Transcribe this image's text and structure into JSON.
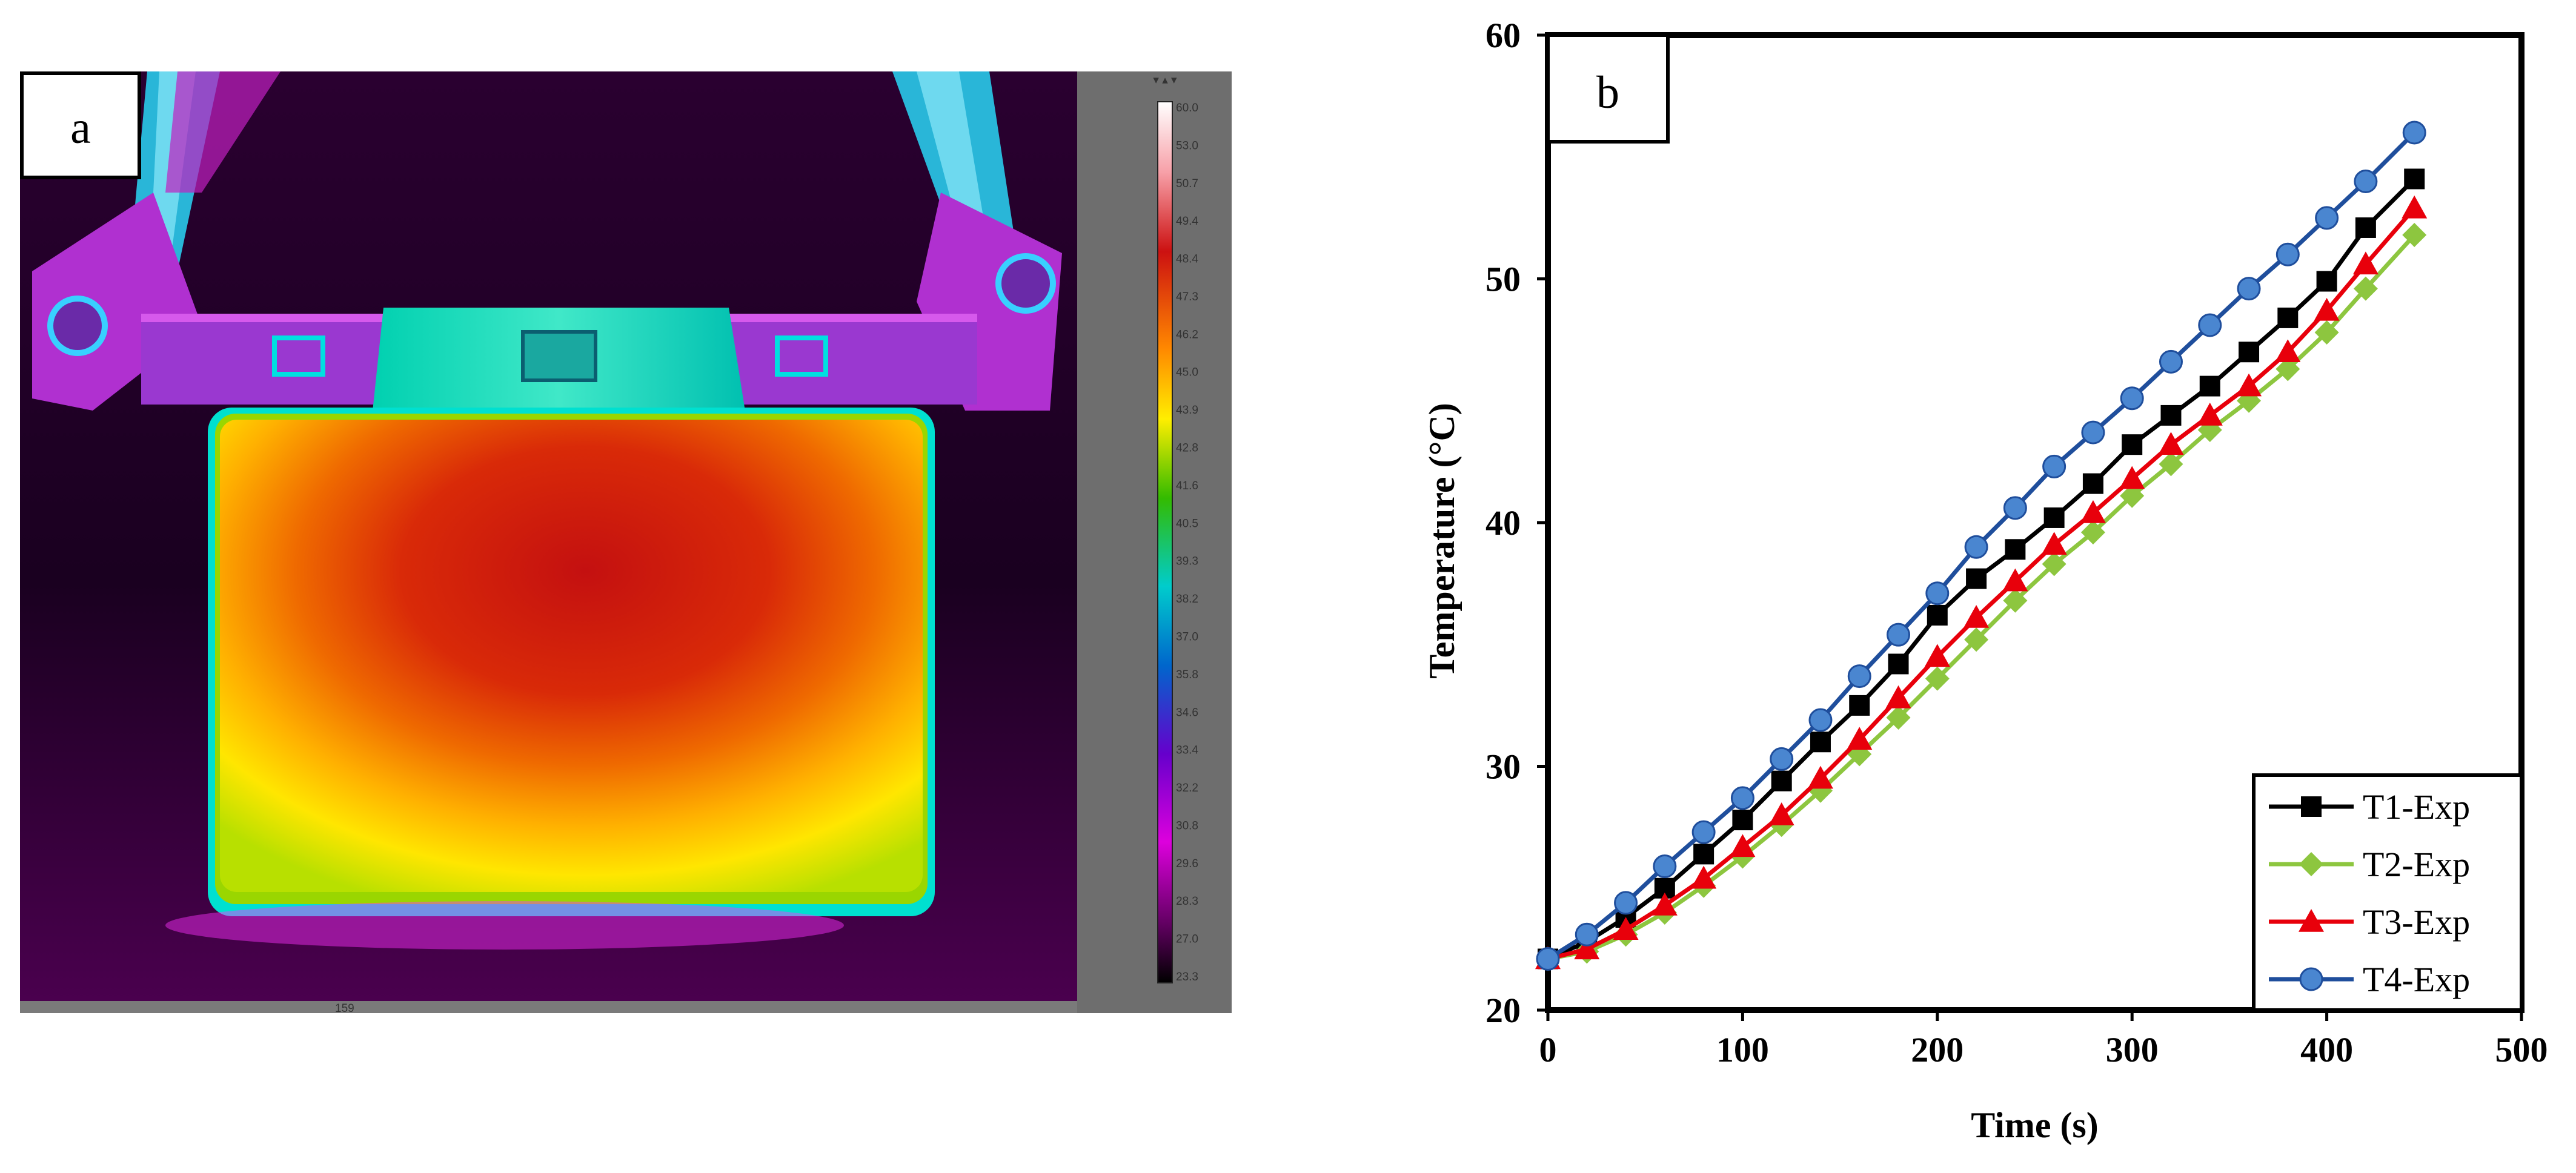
{
  "panel_a": {
    "label": "a",
    "thermal_scale": {
      "ticks": [
        "60.0",
        "53.0",
        "50.7",
        "49.4",
        "48.4",
        "47.3",
        "46.2",
        "45.0",
        "43.9",
        "42.8",
        "41.6",
        "40.5",
        "39.3",
        "38.2",
        "37.0",
        "35.8",
        "34.6",
        "33.4",
        "32.2",
        "30.8",
        "29.6",
        "28.3",
        "27.0",
        "23.3"
      ],
      "colors": [
        "#ffffff",
        "#ffd0d8",
        "#f7a0a8",
        "#e05050",
        "#cc1111",
        "#dd3300",
        "#ee6600",
        "#ffaa00",
        "#ffee00",
        "#ccee00",
        "#66cc00",
        "#00aa22",
        "#00bb88",
        "#00cccc",
        "#00aadd",
        "#0077cc",
        "#3333cc",
        "#4444cc",
        "#7700cc",
        "#aa00cc",
        "#dd00dd",
        "#bb00aa",
        "#660066",
        "#000000"
      ]
    },
    "bottom_readout": "159"
  },
  "chart_data": {
    "type": "line",
    "panel_label": "b",
    "xlabel": "Time (s)",
    "ylabel": "Temperature (°C)",
    "xlim": [
      0,
      500
    ],
    "ylim": [
      20,
      60
    ],
    "xticks": [
      0,
      100,
      200,
      300,
      400,
      500
    ],
    "yticks": [
      20,
      30,
      40,
      50,
      60
    ],
    "grid": false,
    "legend_position": "bottom-right",
    "x": [
      0,
      20,
      40,
      60,
      80,
      100,
      120,
      140,
      160,
      180,
      200,
      220,
      240,
      260,
      280,
      300,
      320,
      340,
      360,
      380,
      400,
      420,
      445
    ],
    "series": [
      {
        "name": "T1-Exp",
        "color": "#000000",
        "marker": "square",
        "values": [
          22.1,
          22.8,
          23.8,
          25.0,
          26.4,
          27.8,
          29.4,
          31.0,
          32.5,
          34.2,
          36.2,
          37.7,
          38.9,
          40.2,
          41.6,
          43.2,
          44.4,
          45.6,
          47.0,
          48.4,
          49.9,
          52.1,
          54.1
        ]
      },
      {
        "name": "T2-Exp",
        "color": "#8dc63f",
        "marker": "diamond",
        "values": [
          22.1,
          22.4,
          23.1,
          24.0,
          25.1,
          26.3,
          27.6,
          29.0,
          30.5,
          32.0,
          33.6,
          35.2,
          36.8,
          38.3,
          39.6,
          41.1,
          42.4,
          43.8,
          45.0,
          46.3,
          47.8,
          49.6,
          51.8
        ]
      },
      {
        "name": "T3-Exp",
        "color": "#e8000b",
        "marker": "triangle",
        "values": [
          22.1,
          22.5,
          23.3,
          24.3,
          25.4,
          26.7,
          28.0,
          29.5,
          31.1,
          32.8,
          34.5,
          36.1,
          37.6,
          39.1,
          40.4,
          41.8,
          43.2,
          44.4,
          45.6,
          47.0,
          48.7,
          50.6,
          52.9
        ]
      },
      {
        "name": "T4-Exp",
        "color": "#1f4e9c",
        "marker": "circle",
        "values": [
          22.1,
          23.1,
          24.4,
          25.9,
          27.3,
          28.7,
          30.3,
          31.9,
          33.7,
          35.4,
          37.1,
          39.0,
          40.6,
          42.3,
          43.7,
          45.1,
          46.6,
          48.1,
          49.6,
          51.0,
          52.5,
          54.0,
          56.0
        ]
      }
    ]
  }
}
